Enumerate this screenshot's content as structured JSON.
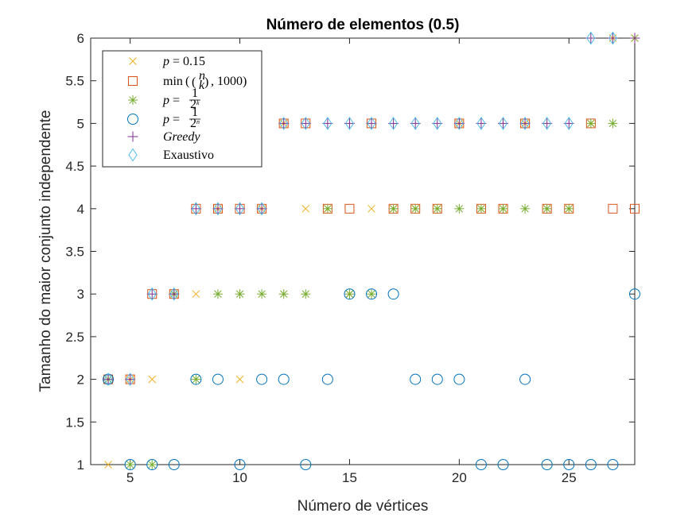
{
  "chart_data": {
    "type": "scatter",
    "title": "Número de elementos (0.5)",
    "xlabel": "Número de vértices",
    "ylabel": "Tamanho do maior conjunto independente",
    "xlim": [
      3.2,
      28
    ],
    "ylim": [
      1,
      6
    ],
    "xticks": [
      "5",
      "10",
      "15",
      "20",
      "25"
    ],
    "xtick_values": [
      5,
      10,
      15,
      20,
      25
    ],
    "yticks": [
      "1",
      "1.5",
      "2",
      "2.5",
      "3",
      "3.5",
      "4",
      "4.5",
      "5",
      "5.5",
      "6"
    ],
    "ytick_values": [
      1,
      1.5,
      2,
      2.5,
      3,
      3.5,
      4,
      4.5,
      5,
      5.5,
      6
    ],
    "grid": false,
    "legend_position": "top-left",
    "series": [
      {
        "name": "p = 0.15",
        "marker": "x",
        "color": "#EDB120",
        "x": [
          4,
          5,
          6,
          7,
          8,
          9,
          10,
          11,
          12,
          13,
          14,
          15,
          16,
          17,
          18,
          19,
          20,
          21,
          22,
          23,
          24,
          25,
          26,
          27,
          28
        ],
        "y": [
          1,
          2,
          2,
          3,
          3,
          4,
          2,
          4,
          5,
          4,
          4,
          3,
          4,
          4,
          4,
          4,
          5,
          4,
          4,
          5,
          4,
          4,
          5,
          6,
          6
        ]
      },
      {
        "name": "min(C(n,k), 1000)",
        "marker": "square",
        "color": "#D95319",
        "x": [
          4,
          5,
          6,
          7,
          8,
          9,
          10,
          11,
          12,
          13,
          14,
          15,
          16,
          17,
          18,
          19,
          20,
          21,
          22,
          23,
          24,
          25,
          26,
          27,
          28
        ],
        "y": [
          2,
          2,
          3,
          3,
          4,
          4,
          4,
          4,
          5,
          5,
          4,
          4,
          5,
          4,
          4,
          4,
          5,
          4,
          4,
          5,
          4,
          4,
          5,
          4,
          4
        ]
      },
      {
        "name": "p = 1/2^k",
        "marker": "asterisk",
        "color": "#77AC30",
        "x": [
          4,
          5,
          6,
          7,
          8,
          9,
          10,
          11,
          12,
          13,
          14,
          15,
          16,
          17,
          18,
          19,
          20,
          21,
          22,
          23,
          24,
          25,
          26,
          27,
          28
        ],
        "y": [
          2,
          1,
          1,
          3,
          2,
          3,
          3,
          3,
          3,
          3,
          4,
          3,
          3,
          4,
          4,
          4,
          4,
          4,
          4,
          4,
          4,
          4,
          5,
          5,
          6
        ]
      },
      {
        "name": "p = 1/2^n",
        "marker": "circle",
        "color": "#0072BD",
        "x": [
          4,
          5,
          6,
          7,
          8,
          9,
          10,
          11,
          12,
          13,
          14,
          15,
          16,
          17,
          18,
          19,
          20,
          21,
          22,
          23,
          24,
          25,
          26,
          27,
          28
        ],
        "y": [
          2,
          1,
          1,
          1,
          2,
          2,
          1,
          2,
          2,
          1,
          2,
          3,
          3,
          3,
          2,
          2,
          2,
          1,
          1,
          2,
          1,
          1,
          1,
          1,
          3
        ]
      },
      {
        "name": "Greedy",
        "marker": "plus",
        "color": "#7E2F8E",
        "x": [
          4,
          5,
          6,
          7,
          8,
          9,
          10,
          11,
          12,
          13,
          14,
          15,
          16,
          17,
          18,
          19,
          20,
          21,
          22,
          23,
          24,
          25,
          26,
          27,
          28
        ],
        "y": [
          2,
          2,
          3,
          3,
          4,
          4,
          4,
          4,
          5,
          5,
          5,
          5,
          5,
          5,
          5,
          5,
          5,
          5,
          5,
          5,
          5,
          5,
          6,
          6,
          6
        ]
      },
      {
        "name": "Exaustivo",
        "marker": "diamond",
        "color": "#4DBEEE",
        "x": [
          4,
          5,
          6,
          7,
          8,
          9,
          10,
          11,
          12,
          13,
          14,
          15,
          16,
          17,
          18,
          19,
          20,
          21,
          22,
          23,
          24,
          25,
          26,
          27
        ],
        "y": [
          2,
          2,
          3,
          3,
          4,
          4,
          4,
          4,
          5,
          5,
          5,
          5,
          5,
          5,
          5,
          5,
          5,
          5,
          5,
          5,
          5,
          5,
          6,
          6
        ]
      }
    ]
  }
}
